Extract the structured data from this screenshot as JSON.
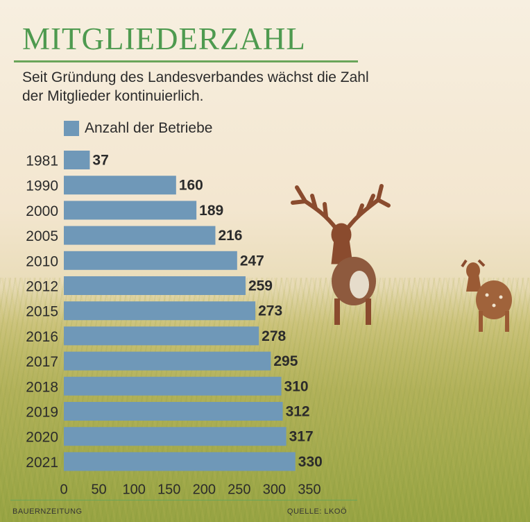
{
  "header": {
    "title": "MITGLIEDERZAHL",
    "subtitle": "Seit Gründung des Landesverbandes wächst die Zahl der Mitglieder kontinuierlich."
  },
  "footer": {
    "publisher": "BAUERNZEITUNG",
    "source": "QUELLE: LKOÖ"
  },
  "colors": {
    "bar": "#6f98b8",
    "title": "#4e9a4f",
    "rule": "#6aa55a"
  },
  "chart_data": {
    "type": "bar",
    "orientation": "horizontal",
    "categories": [
      "1981",
      "1990",
      "2000",
      "2005",
      "2010",
      "2012",
      "2015",
      "2016",
      "2017",
      "2018",
      "2019",
      "2020",
      "2021"
    ],
    "series": [
      {
        "name": "Anzahl der Betriebe",
        "values": [
          37,
          160,
          189,
          216,
          247,
          259,
          273,
          278,
          295,
          310,
          312,
          317,
          330
        ]
      }
    ],
    "xlim": [
      0,
      350
    ],
    "xticks": [
      "0",
      "50",
      "100",
      "150",
      "200",
      "250",
      "300",
      "350"
    ],
    "data_labels": true,
    "grid": false,
    "legend": "top-left"
  }
}
